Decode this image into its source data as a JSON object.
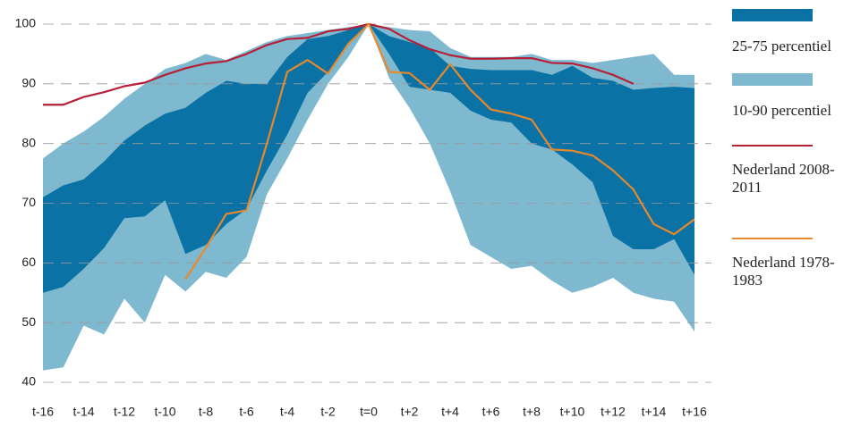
{
  "chart_data": {
    "type": "line",
    "categories": [
      "t-16",
      null,
      "t-14",
      null,
      "t-12",
      null,
      "t-10",
      null,
      "t-8",
      null,
      "t-6",
      null,
      "t-4",
      null,
      "t-2",
      null,
      "t=0",
      null,
      "t+2",
      null,
      "t+4",
      null,
      "t+6",
      null,
      "t+8",
      null,
      "t+10",
      null,
      "t+12",
      null,
      "t+14",
      null,
      "t+16"
    ],
    "ylim": [
      40,
      100
    ],
    "yticks": [
      40,
      50,
      60,
      70,
      80,
      90,
      100
    ],
    "grid": true,
    "series": [
      {
        "name": "10-90 percentiel",
        "color": "#7fb9d0",
        "high": [
          77.5,
          80,
          82,
          84.5,
          87.5,
          90,
          92.5,
          93.5,
          95,
          94,
          95.5,
          97,
          98,
          98.5,
          99,
          99.5,
          100,
          99.5,
          99,
          98.8,
          96,
          94.5,
          94.5,
          94.5,
          95,
          94,
          94,
          93.5,
          94,
          94.5,
          95,
          91.5,
          91.5
        ],
        "low": [
          42,
          42.5,
          49.5,
          48,
          54,
          50,
          58,
          55.2,
          58.5,
          57.5,
          61,
          71.5,
          77.5,
          84,
          90,
          94.5,
          100,
          91,
          86,
          80,
          72,
          63,
          61,
          59,
          59.5,
          57,
          55,
          56,
          57.5,
          55,
          54,
          53.5,
          48.5
        ]
      },
      {
        "name": "25-75 percentiel",
        "color": "#0a72a4",
        "high": [
          71,
          73,
          74,
          77,
          80.5,
          83,
          85,
          86,
          88.5,
          90.5,
          90,
          90,
          94.5,
          97.5,
          98,
          99,
          100,
          98,
          97,
          96,
          93,
          92.5,
          92.3,
          92.3,
          92.3,
          91.5,
          93,
          91,
          90.5,
          89,
          89.3,
          89.5,
          89.3
        ],
        "low": [
          55,
          56,
          59,
          62.5,
          67.5,
          67.8,
          70.5,
          61.5,
          63,
          66.5,
          69,
          75.5,
          81.5,
          88.5,
          92,
          96.5,
          100,
          95,
          89.5,
          89,
          88.5,
          85.5,
          84,
          83.5,
          80,
          79,
          76.5,
          73.5,
          64.5,
          62.3,
          62.3,
          64,
          58
        ]
      },
      {
        "name": "Nederland 2008-2011",
        "color": "#b52038",
        "values": [
          86.5,
          86.5,
          87.8,
          88.6,
          89.6,
          90.2,
          91.5,
          92.6,
          93.4,
          93.8,
          95,
          96.5,
          97.5,
          97.7,
          98.8,
          99.2,
          100,
          99.2,
          97.3,
          95.8,
          94.8,
          94.2,
          94.2,
          94.3,
          94.3,
          93.5,
          93.4,
          92.6,
          91.5,
          90,
          null,
          null,
          null
        ]
      },
      {
        "name": "Nederland 1978-1983",
        "color": "#e8892b",
        "values": [
          null,
          null,
          null,
          null,
          null,
          null,
          null,
          57.3,
          62.5,
          68.2,
          68.8,
          80,
          92,
          94,
          91.7,
          96.7,
          100,
          92,
          91.8,
          89,
          93.3,
          89,
          85.7,
          85,
          84,
          79,
          78.8,
          78,
          75.5,
          72.3,
          66.5,
          64.8,
          67.3
        ]
      }
    ]
  }
}
